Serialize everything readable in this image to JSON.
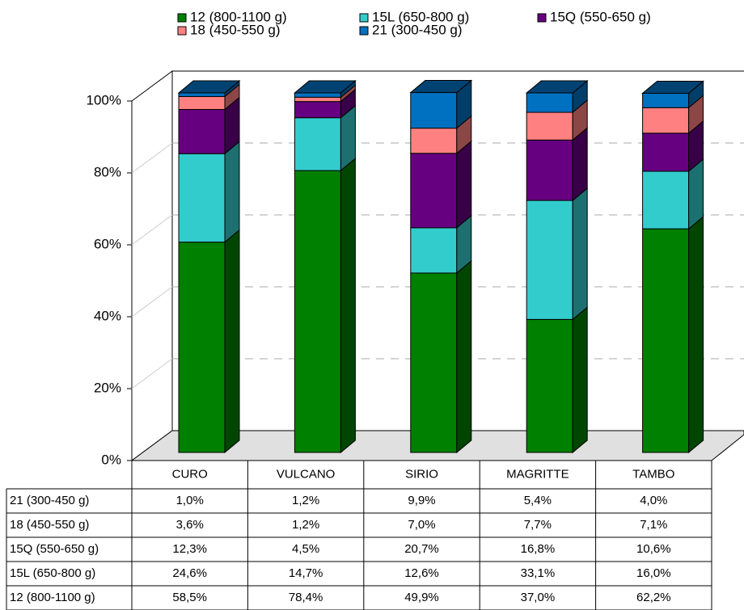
{
  "chart_data": {
    "type": "bar",
    "stacked": true,
    "categories": [
      "CURO",
      "VULCANO",
      "SIRIO",
      "MAGRITTE",
      "TAMBO"
    ],
    "series": [
      {
        "name": "12 (800-1100 g)",
        "color": "#008000",
        "values": [
          58.5,
          78.4,
          49.9,
          37.0,
          62.2
        ],
        "value_labels": [
          "58,5%",
          "78,4%",
          "49,9%",
          "37,0%",
          "62,2%"
        ]
      },
      {
        "name": "15L (650-800 g)",
        "color": "#33cccc",
        "values": [
          24.6,
          14.7,
          12.6,
          33.1,
          16.0
        ],
        "value_labels": [
          "24,6%",
          "14,7%",
          "12,6%",
          "33,1%",
          "16,0%"
        ]
      },
      {
        "name": "15Q (550-650 g)",
        "color": "#660080",
        "values": [
          12.3,
          4.5,
          20.7,
          16.8,
          10.6
        ],
        "value_labels": [
          "12,3%",
          "4,5%",
          "20,7%",
          "16,8%",
          "10,6%"
        ]
      },
      {
        "name": "18 (450-550 g)",
        "color": "#ff8080",
        "values": [
          3.6,
          1.2,
          7.0,
          7.7,
          7.1
        ],
        "value_labels": [
          "3,6%",
          "1,2%",
          "7,0%",
          "7,7%",
          "7,1%"
        ]
      },
      {
        "name": "21 (300-450 g)",
        "color": "#0070c0",
        "values": [
          1.0,
          1.2,
          9.9,
          5.4,
          4.0
        ],
        "value_labels": [
          "1,0%",
          "1,2%",
          "9,9%",
          "5,4%",
          "4,0%"
        ]
      }
    ],
    "ylim": [
      0,
      100
    ],
    "yticks": [
      {
        "value": 0,
        "label": "0%"
      },
      {
        "value": 20,
        "label": "20%"
      },
      {
        "value": 40,
        "label": "40%"
      },
      {
        "value": 60,
        "label": "60%"
      },
      {
        "value": 80,
        "label": "80%"
      },
      {
        "value": 100,
        "label": "100%"
      }
    ],
    "grid": true
  }
}
